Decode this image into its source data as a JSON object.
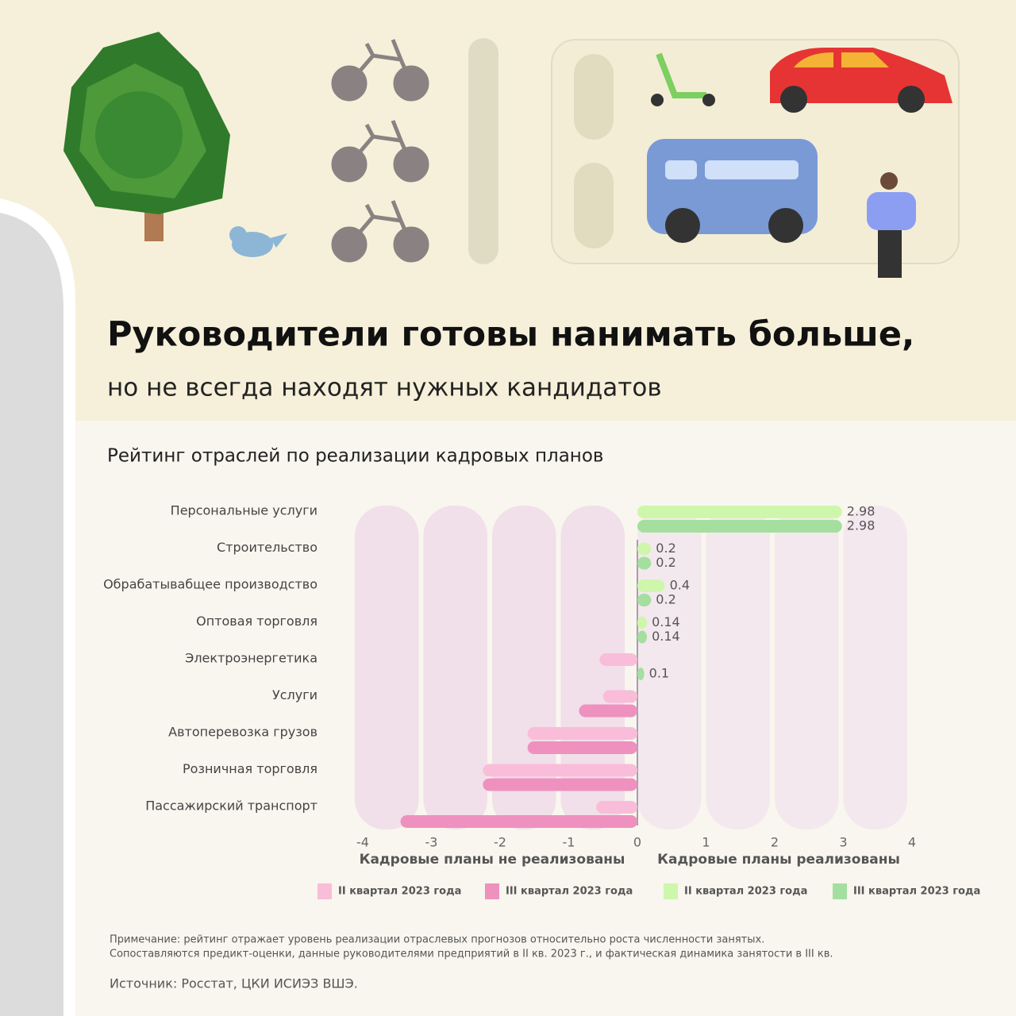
{
  "header": {
    "title": "Руководители готовы нанимать больше,",
    "subtitle": "но не всегда находят нужных кандидатов"
  },
  "chart_data": {
    "type": "diverging-bar",
    "title": "Рейтинг отраслей по реализации кадровых планов",
    "categories": [
      "Персональные услуги",
      "Строительство",
      "Обрабатывабщее производство",
      "Оптовая торговля",
      "Электроэнергетика",
      "Услуги",
      "Автоперевозка грузов",
      "Розничная торговля",
      "Пассажирский транспорт"
    ],
    "series": [
      {
        "name": "II квартал 2023 года",
        "color": "#f9bdd9",
        "values": [
          null,
          null,
          null,
          null,
          -0.55,
          -0.5,
          -1.6,
          -2.25,
          -0.6
        ]
      },
      {
        "name": "III квартал 2023 года",
        "color": "#ee91bf",
        "values": [
          null,
          null,
          null,
          null,
          null,
          -0.85,
          -1.6,
          -2.25,
          -3.45
        ]
      },
      {
        "name": "II квартал 2023 года",
        "color": "#cff7ac",
        "show_labels": true,
        "values": [
          2.98,
          0.2,
          0.4,
          0.14,
          null,
          null,
          null,
          null,
          null
        ]
      },
      {
        "name": "III квартал 2023 года",
        "color": "#a4dfa0",
        "show_labels": true,
        "values": [
          2.98,
          0.2,
          0.2,
          0.14,
          0.1,
          null,
          null,
          null,
          null
        ]
      }
    ],
    "xlim": [
      -4,
      4
    ],
    "xticks": [
      -4,
      -3,
      -2,
      -1,
      0,
      1,
      2,
      3,
      4
    ],
    "xlabel_left": "Кадровые планы не реализованы",
    "xlabel_right": "Кадровые планы реализованы"
  },
  "note": [
    "Примечание: рейтинг отражает уровень реализации отраслевых прогнозов относительно роста численности занятых.",
    "Сопоставляются предикт-оценки, данные руководителями предприятий в II кв. 2023 г., и фактическая динамика занятости в III кв."
  ],
  "source": "Источник: Росстат, ЦКИ ИСИЭЗ ВШЭ."
}
